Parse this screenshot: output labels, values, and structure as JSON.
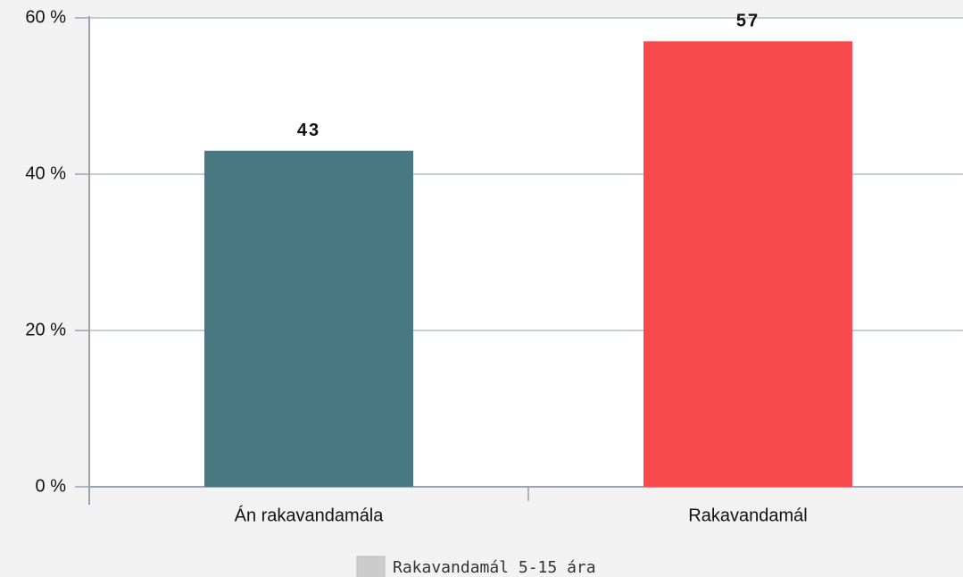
{
  "chart_data": {
    "type": "bar",
    "categories": [
      "Án rakavandamála",
      "Rakavandamál"
    ],
    "series": [
      {
        "name": "Rakavandamál 5-15 ára",
        "color": "#cccccc",
        "colors": [
          "#487882",
          "#f94a4d"
        ],
        "values": [
          43,
          57
        ]
      }
    ],
    "ylim": [
      0,
      60
    ],
    "yticks": [
      {
        "value": 0,
        "label": "0 %"
      },
      {
        "value": 20,
        "label": "20 %"
      },
      {
        "value": 40,
        "label": "40 %"
      },
      {
        "value": 60,
        "label": "60 %"
      }
    ],
    "grid": true,
    "legend": "bottom"
  }
}
